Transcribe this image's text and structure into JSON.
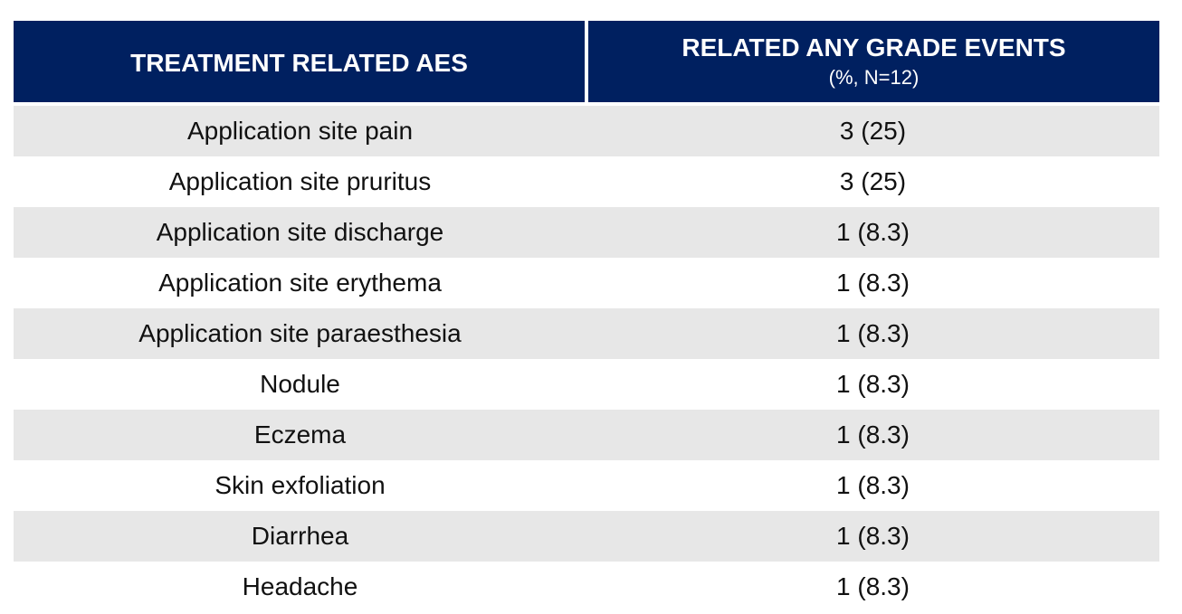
{
  "table": {
    "header": [
      "TREATMENT RELATED AES",
      {
        "title": "RELATED ANY GRADE EVENTS",
        "subtitle": "(%, N=12)"
      }
    ],
    "rows": [
      [
        "Application site pain",
        "3 (25)"
      ],
      [
        "Application site pruritus",
        "3 (25)"
      ],
      [
        "Application site discharge",
        "1 (8.3)"
      ],
      [
        "Application site erythema",
        "1 (8.3)"
      ],
      [
        "Application site paraesthesia",
        "1 (8.3)"
      ],
      [
        "Nodule",
        "1 (8.3)"
      ],
      [
        "Eczema",
        "1 (8.3)"
      ],
      [
        "Skin exfoliation",
        "1 (8.3)"
      ],
      [
        "Diarrhea",
        "1 (8.3)"
      ],
      [
        "Headache",
        "1 (8.3)"
      ]
    ]
  }
}
